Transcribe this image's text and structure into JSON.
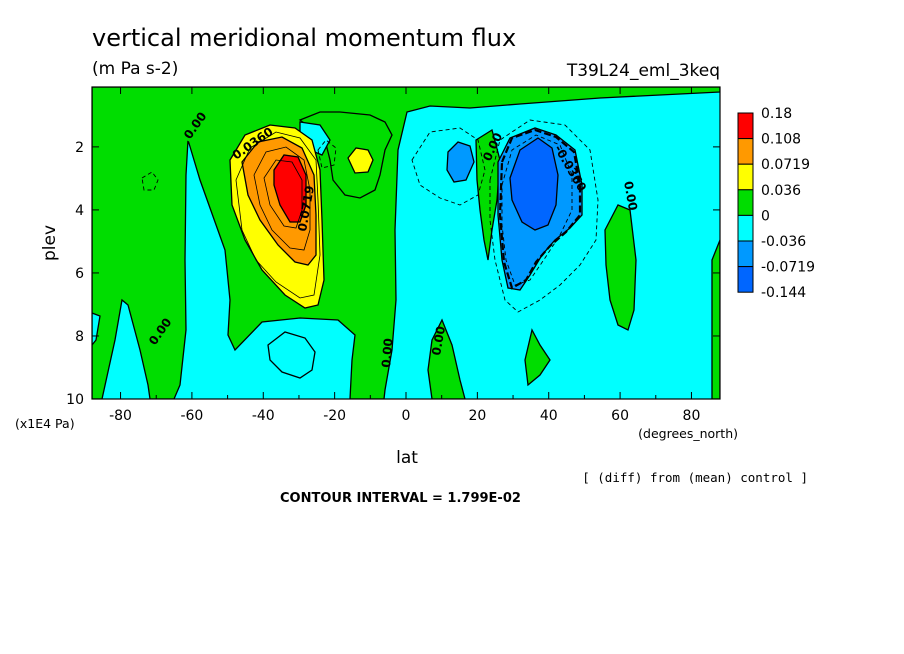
{
  "chart_data": {
    "type": "heatmap",
    "title": "vertical meridional momentum flux",
    "units": "(m Pa s-2)",
    "experiment": "T39L24_eml_3keq",
    "xlabel": "lat",
    "xunits": "(degrees_north)",
    "ylabel": "plev",
    "yunits": "(x1E4 Pa)",
    "xlim": [
      -88,
      88
    ],
    "ylim": [
      10,
      0.1
    ],
    "x_ticks": [
      "-80",
      "-60",
      "-40",
      "-20",
      "0",
      "20",
      "40",
      "60",
      "80"
    ],
    "y_ticks": [
      "2",
      "4",
      "6",
      "8",
      "10"
    ],
    "legend": {
      "position": "right",
      "labels": [
        "0.18",
        "0.108",
        "0.0719",
        "0.036",
        "0",
        "-0.036",
        "-0.0719",
        "-0.144"
      ],
      "colors": [
        "#ff0000",
        "#ff9900",
        "#ffff00",
        "#00dd00",
        "#00ffff",
        "#0099ff",
        "#0066ff"
      ]
    },
    "contour_labels": [
      "0.00",
      "0.0360",
      "0.0719",
      "0.00",
      "0.00",
      "0.00",
      "0.00",
      "-0.0360",
      "0.00"
    ],
    "note": "[ (diff) from (mean) control ]",
    "contour_interval": "CONTOUR INTERVAL = 1.799E-02",
    "features": [
      {
        "name": "positive maximum",
        "lat": -32,
        "plev": 3.2,
        "value": 0.18
      },
      {
        "name": "negative minimum",
        "lat": 33,
        "plev": 3.5,
        "value": -0.144
      },
      {
        "name": "secondary positive",
        "lat": -13,
        "plev": 2.5,
        "value": 0.036
      },
      {
        "name": "secondary negative",
        "lat": 15,
        "plev": 2.7,
        "value": -0.0719
      }
    ]
  }
}
